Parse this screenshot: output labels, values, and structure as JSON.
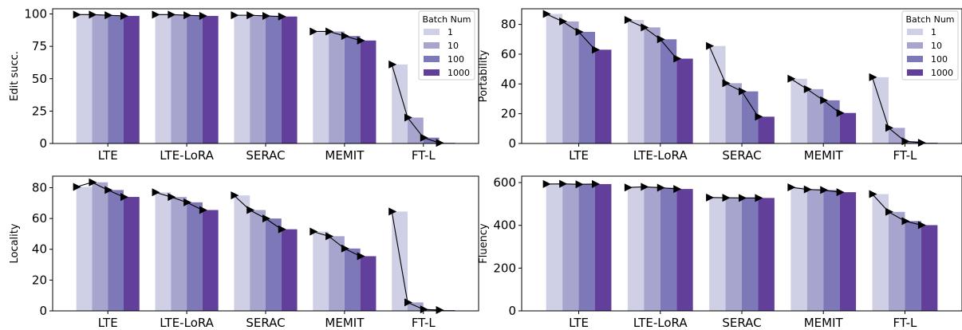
{
  "legend": {
    "title": "Batch Num",
    "labels": [
      "1",
      "10",
      "100",
      "1000"
    ],
    "placement": "top-right"
  },
  "colors": {
    "series": [
      "#cfcfe5",
      "#a7a5ce",
      "#7d78b8",
      "#613f9b"
    ],
    "axes": "#000000",
    "marker": "#000000"
  },
  "chart_data": [
    {
      "type": "bar",
      "ylabel": "Edit succ.",
      "categories": [
        "LTE",
        "LTE-LoRA",
        "SERAC",
        "MEMIT",
        "FT-L"
      ],
      "ylim": [
        0,
        104
      ],
      "yticks": [
        0,
        25,
        50,
        75,
        100
      ],
      "legend": true,
      "series": [
        {
          "name": "1",
          "values": [
            99.5,
            99.5,
            99.0,
            86.5,
            61.0
          ]
        },
        {
          "name": "10",
          "values": [
            99.5,
            99.5,
            99.0,
            86.5,
            20.0
          ]
        },
        {
          "name": "100",
          "values": [
            99.0,
            99.0,
            98.5,
            83.0,
            4.5
          ]
        },
        {
          "name": "1000",
          "values": [
            98.5,
            98.5,
            98.0,
            79.5,
            0.5
          ]
        }
      ]
    },
    {
      "type": "bar",
      "ylabel": "Portability",
      "categories": [
        "LTE",
        "LTE-LoRA",
        "SERAC",
        "MEMIT",
        "FT-L"
      ],
      "ylim": [
        0,
        90.5
      ],
      "yticks": [
        0,
        20,
        40,
        60,
        80
      ],
      "legend": true,
      "series": [
        {
          "name": "1",
          "values": [
            87.0,
            83.0,
            65.5,
            43.5,
            44.5
          ]
        },
        {
          "name": "10",
          "values": [
            82.0,
            78.0,
            40.5,
            36.5,
            10.5
          ]
        },
        {
          "name": "100",
          "values": [
            75.0,
            70.0,
            35.0,
            29.0,
            1.5
          ]
        },
        {
          "name": "1000",
          "values": [
            63.0,
            57.0,
            18.0,
            20.5,
            0.5
          ]
        }
      ]
    },
    {
      "type": "bar",
      "ylabel": "Locality",
      "categories": [
        "LTE",
        "LTE-LoRA",
        "SERAC",
        "MEMIT",
        "FT-L"
      ],
      "ylim": [
        0,
        87.5
      ],
      "yticks": [
        0,
        20,
        40,
        60,
        80
      ],
      "legend": false,
      "series": [
        {
          "name": "1",
          "values": [
            80.5,
            77.0,
            75.0,
            51.5,
            64.5
          ]
        },
        {
          "name": "10",
          "values": [
            83.5,
            74.0,
            65.5,
            48.5,
            5.5
          ]
        },
        {
          "name": "100",
          "values": [
            78.5,
            70.5,
            60.0,
            40.5,
            1.0
          ]
        },
        {
          "name": "1000",
          "values": [
            74.0,
            65.5,
            53.0,
            35.5,
            0.5
          ]
        }
      ]
    },
    {
      "type": "bar",
      "ylabel": "Fluency",
      "categories": [
        "LTE",
        "LTE-LoRA",
        "SERAC",
        "MEMIT",
        "FT-L"
      ],
      "ylim": [
        0,
        630
      ],
      "yticks": [
        0,
        200,
        400,
        600
      ],
      "legend": false,
      "series": [
        {
          "name": "1",
          "values": [
            593,
            577,
            530,
            578,
            546
          ]
        },
        {
          "name": "10",
          "values": [
            594,
            580,
            529,
            568,
            463
          ]
        },
        {
          "name": "100",
          "values": [
            592,
            576,
            528,
            565,
            420
          ]
        },
        {
          "name": "1000",
          "values": [
            593,
            570,
            528,
            555,
            401
          ]
        }
      ]
    }
  ]
}
